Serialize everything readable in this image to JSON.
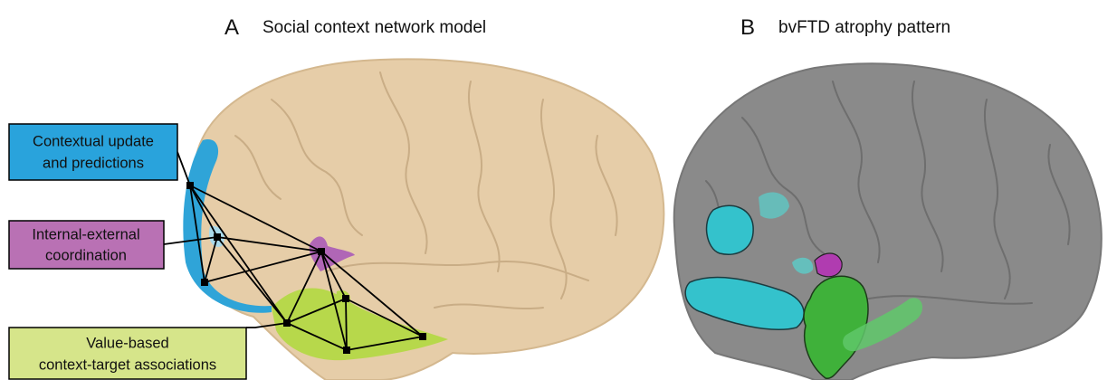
{
  "panel_a": {
    "letter": "A",
    "title": "Social context network model",
    "labels": [
      {
        "lines": [
          "Contextual update",
          "and predictions"
        ]
      },
      {
        "lines": [
          "Internal-external",
          "coordination"
        ]
      },
      {
        "lines": [
          "Value-based",
          "context-target associations"
        ]
      }
    ]
  },
  "panel_b": {
    "letter": "B",
    "title": "bvFTD atrophy pattern"
  }
}
